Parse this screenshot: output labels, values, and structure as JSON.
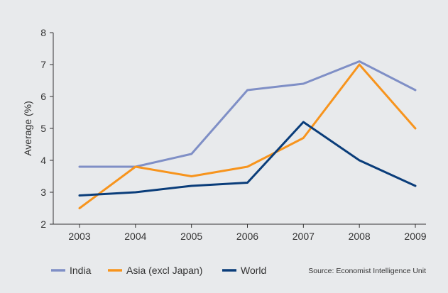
{
  "chart_data": {
    "type": "line",
    "title": "",
    "xlabel": "",
    "ylabel": "Average (%)",
    "categories": [
      "2003",
      "2004",
      "2005",
      "2006",
      "2007",
      "2008",
      "2009"
    ],
    "y_ticks": [
      2,
      3,
      4,
      5,
      6,
      7,
      8
    ],
    "ylim": [
      2,
      8
    ],
    "grid": false,
    "legend_position": "bottom",
    "series": [
      {
        "name": "India",
        "color": "#7f8fc6",
        "values": [
          3.8,
          3.8,
          4.2,
          6.2,
          6.4,
          7.1,
          6.2
        ]
      },
      {
        "name": "Asia (excl Japan)",
        "color": "#f7941d",
        "values": [
          2.5,
          3.8,
          3.5,
          3.8,
          4.7,
          7.0,
          5.0
        ]
      },
      {
        "name": "World",
        "color": "#0a3d7a",
        "values": [
          2.9,
          3.0,
          3.2,
          3.3,
          5.2,
          4.0,
          3.2
        ]
      }
    ],
    "source": "Source: Economist Intelligence Unit"
  }
}
